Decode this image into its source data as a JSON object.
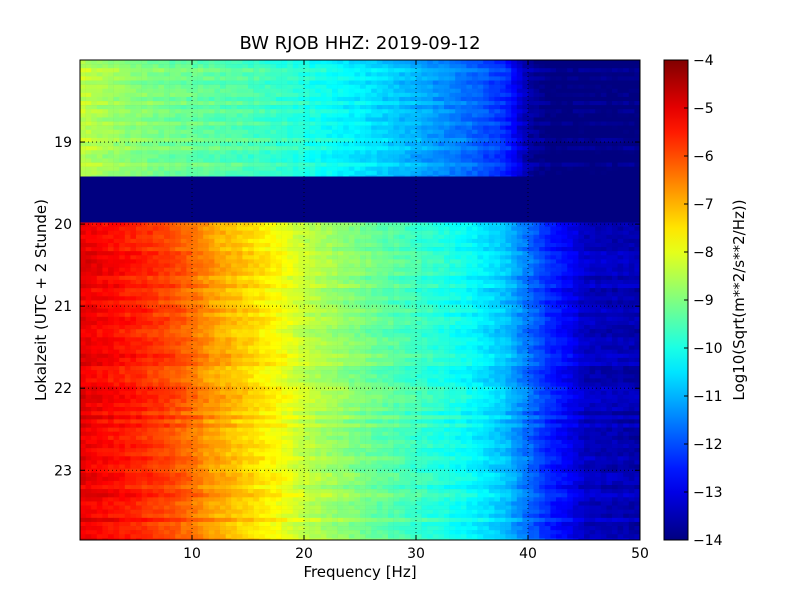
{
  "chart_data": {
    "type": "heatmap",
    "title": "BW RJOB HHZ: 2019-09-12",
    "xlabel": "Frequency [Hz]",
    "ylabel": "Lokalzeit (UTC + 2 Stunde)",
    "xlim": [
      0,
      50
    ],
    "ylim": [
      23.85,
      18.0
    ],
    "x_ticks": [
      10,
      20,
      30,
      40,
      50
    ],
    "y_ticks": [
      19,
      20,
      21,
      22,
      23
    ],
    "grid": true,
    "colormap": "jet",
    "colorbar": {
      "label": "Log10(Sqrt(m**2/s**2/Hz))",
      "range": [
        -14,
        -4
      ],
      "ticks": [
        -4,
        -5,
        -6,
        -7,
        -8,
        -9,
        -10,
        -11,
        -12,
        -13,
        -14
      ]
    },
    "data_gap": [
      19.42,
      19.98
    ],
    "spectrum_profiles": [
      {
        "name": "",
        "time_range": [
          18.0,
          19.42
        ],
        "freq": [
          0,
          2,
          5,
          10,
          15,
          20,
          25,
          30,
          35,
          38,
          40,
          42,
          50
        ],
        "values": [
          -8.3,
          -8.6,
          -8.9,
          -9.2,
          -9.5,
          -9.9,
          -10.4,
          -11.0,
          -11.7,
          -12.3,
          -13.6,
          -14.0,
          -14.0
        ]
      },
      {
        "name": "",
        "time_range": [
          19.98,
          23.85
        ],
        "freq": [
          0,
          2,
          5,
          8,
          10,
          12,
          15,
          18,
          20,
          25,
          30,
          35,
          38,
          40,
          42,
          44,
          45,
          50
        ],
        "values": [
          -5.0,
          -5.2,
          -5.5,
          -5.9,
          -6.3,
          -6.8,
          -7.3,
          -7.8,
          -8.3,
          -9.0,
          -9.6,
          -10.2,
          -10.8,
          -11.6,
          -12.4,
          -12.9,
          -13.3,
          -13.5
        ]
      }
    ]
  }
}
